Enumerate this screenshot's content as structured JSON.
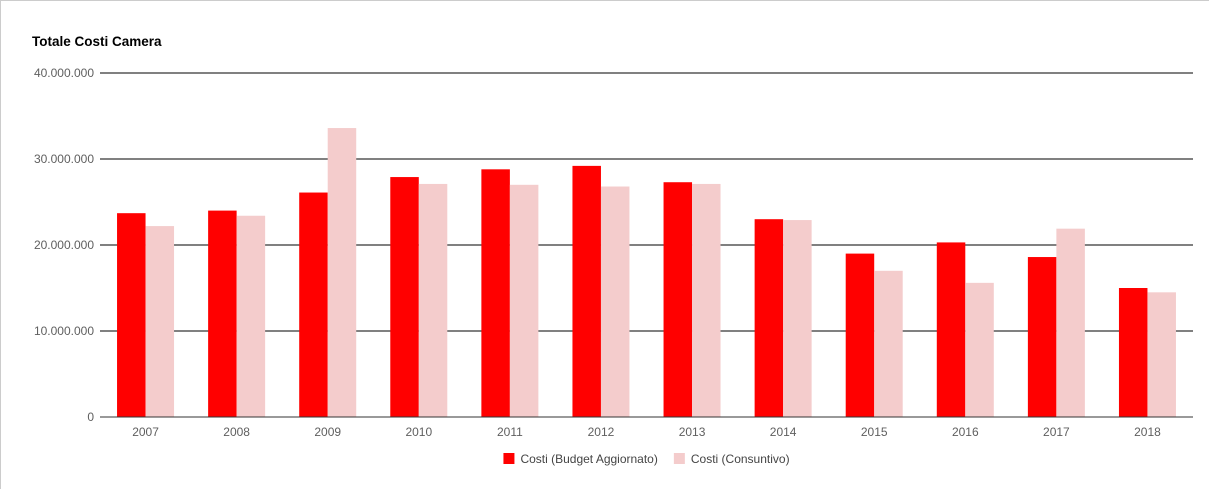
{
  "chart_data": {
    "type": "bar",
    "title": "Totale Costi Camera",
    "xlabel": "",
    "ylabel": "",
    "categories": [
      "2007",
      "2008",
      "2009",
      "2010",
      "2011",
      "2012",
      "2013",
      "2014",
      "2015",
      "2016",
      "2017",
      "2018"
    ],
    "series": [
      {
        "name": "Costi (Budget Aggiornato)",
        "color": "#ff0000",
        "values": [
          23700000,
          24000000,
          26100000,
          27900000,
          28800000,
          29200000,
          27300000,
          23000000,
          19000000,
          20300000,
          18600000,
          15000000
        ]
      },
      {
        "name": "Costi (Consuntivo)",
        "color": "#f4cccc",
        "values": [
          22200000,
          23400000,
          33600000,
          27100000,
          27000000,
          26800000,
          27100000,
          22900000,
          17000000,
          15600000,
          21900000,
          14500000
        ]
      }
    ],
    "ylim": [
      0,
      40000000
    ],
    "yticks": [
      {
        "value": 0,
        "label": "0"
      },
      {
        "value": 10000000,
        "label": "10.000.000"
      },
      {
        "value": 20000000,
        "label": "20.000.000"
      },
      {
        "value": 30000000,
        "label": "30.000.000"
      },
      {
        "value": 40000000,
        "label": "40.000.000"
      }
    ],
    "grid": true,
    "legend_position": "bottom"
  }
}
